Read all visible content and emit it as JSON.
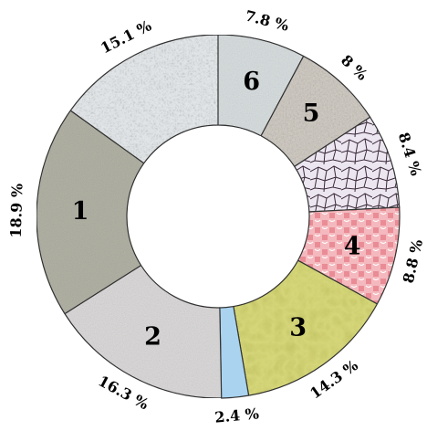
{
  "chart_data": {
    "type": "pie",
    "donut": true,
    "start_angle_deg": 0,
    "direction": "clockwise",
    "slices": [
      {
        "value": 7.8,
        "label": "7.8 %",
        "number": "6",
        "color": "#d9dfe0",
        "texture": "noise"
      },
      {
        "value": 8.0,
        "label": "8 %",
        "number": "5",
        "color": "#d3cec6",
        "texture": "stucco"
      },
      {
        "value": 8.4,
        "label": "8.4 %",
        "number": "",
        "color": "#ece6f0",
        "texture": "voronoi"
      },
      {
        "value": 8.8,
        "label": "8.8 %",
        "number": "4",
        "color": "#f2a7ad",
        "texture": "pattern"
      },
      {
        "value": 14.3,
        "label": "14.3 %",
        "number": "3",
        "color": "#d6d77a",
        "texture": "floral"
      },
      {
        "value": 2.4,
        "label": "2.4 %",
        "number": "",
        "color": "#a9d3ef",
        "texture": "plain"
      },
      {
        "value": 16.3,
        "label": "16.3 %",
        "number": "2",
        "color": "#dcdada",
        "texture": "noise"
      },
      {
        "value": 18.9,
        "label": "18.9 %",
        "number": "1",
        "color": "#b5b5a8",
        "texture": "grain"
      },
      {
        "value": 15.1,
        "label": "15.1 %",
        "number": "",
        "color": "#e4e8ea",
        "texture": "speckle"
      }
    ]
  }
}
